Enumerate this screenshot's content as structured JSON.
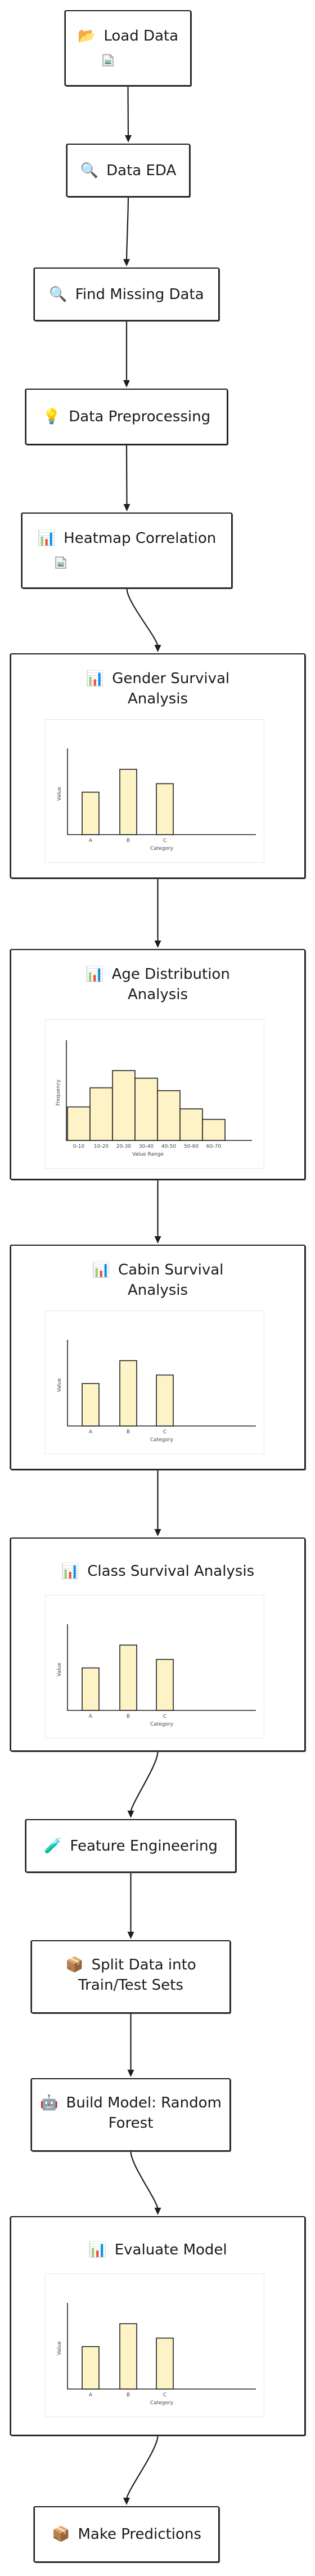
{
  "nodes": [
    {
      "id": "load-data",
      "emoji": "📂",
      "title": "Load Data",
      "broken_image": true
    },
    {
      "id": "data-eda",
      "emoji": "🔍",
      "title": "Data EDA"
    },
    {
      "id": "find-missing-data",
      "emoji": "🔍",
      "title": "Find Missing Data"
    },
    {
      "id": "data-preprocessing",
      "emoji": "💡",
      "title": "Data Preprocessing"
    },
    {
      "id": "heatmap-correlation",
      "emoji": "📊",
      "title": "Heatmap Correlation",
      "broken_image": true
    },
    {
      "id": "gender-survival-analysis",
      "emoji": "📊",
      "title_lines": [
        "Gender Survival",
        "Analysis"
      ],
      "chart": 0
    },
    {
      "id": "age-distribution-analysis",
      "emoji": "📊",
      "title_lines": [
        "Age Distribution",
        "Analysis"
      ],
      "chart": 1
    },
    {
      "id": "cabin-survival-analysis",
      "emoji": "📊",
      "title_lines": [
        "Cabin Survival",
        "Analysis"
      ],
      "chart": 2
    },
    {
      "id": "class-survival-analysis",
      "emoji": "📊",
      "title": "Class Survival Analysis",
      "chart": 3
    },
    {
      "id": "feature-engineering",
      "emoji": "🧪",
      "title": "Feature Engineering"
    },
    {
      "id": "split-data",
      "emoji": "📦",
      "title_lines": [
        "Split Data into",
        "Train/Test Sets"
      ]
    },
    {
      "id": "build-model",
      "emoji": "🤖",
      "title_lines": [
        "Build Model: Random",
        "Forest"
      ]
    },
    {
      "id": "evaluate-model",
      "emoji": "📊",
      "title": "Evaluate Model",
      "chart": 4
    },
    {
      "id": "make-predictions",
      "emoji": "📦",
      "title": "Make Predictions"
    }
  ],
  "chart_data": [
    {
      "type": "bar",
      "categories": [
        "A",
        "B",
        "C"
      ],
      "values": [
        65,
        100,
        78
      ],
      "xlabel": "Category",
      "ylabel": "Value",
      "ylim": [
        0,
        125
      ]
    },
    {
      "type": "bar",
      "categories": [
        "0-10",
        "10-20",
        "20-30",
        "30-40",
        "40-50",
        "50-60",
        "60-70"
      ],
      "values": [
        35,
        55,
        73,
        65,
        52,
        33,
        22
      ],
      "xlabel": "Value Range",
      "ylabel": "Frequency",
      "ylim": [
        0,
        100
      ]
    },
    {
      "type": "bar",
      "categories": [
        "A",
        "B",
        "C"
      ],
      "values": [
        65,
        100,
        78
      ],
      "xlabel": "Category",
      "ylabel": "Value",
      "ylim": [
        0,
        125
      ]
    },
    {
      "type": "bar",
      "categories": [
        "A",
        "B",
        "C"
      ],
      "values": [
        65,
        100,
        78
      ],
      "xlabel": "Category",
      "ylabel": "Value",
      "ylim": [
        0,
        125
      ]
    },
    {
      "type": "bar",
      "categories": [
        "A",
        "B",
        "C"
      ],
      "values": [
        65,
        100,
        78
      ],
      "xlabel": "Category",
      "ylabel": "Value",
      "ylim": [
        0,
        125
      ]
    }
  ]
}
